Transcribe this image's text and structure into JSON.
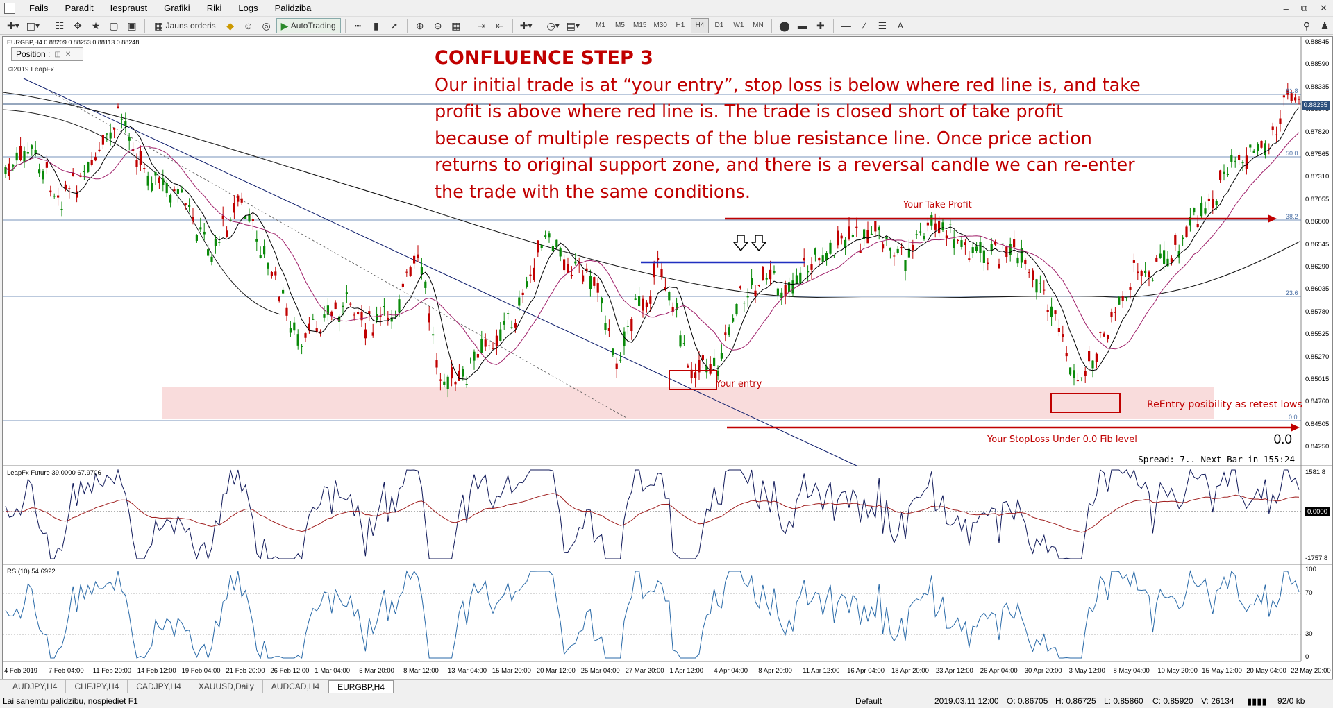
{
  "menu": {
    "items": [
      "Fails",
      "Paradit",
      "Iespraust",
      "Grafiki",
      "Riki",
      "Logs",
      "Palidziba"
    ]
  },
  "toolbar": {
    "new_order": "Jauns orderis",
    "autotrading": "AutoTrading",
    "timeframes": [
      "M1",
      "M5",
      "M15",
      "M30",
      "H1",
      "H4",
      "D1",
      "W1",
      "MN"
    ],
    "active_timeframe": "H4",
    "text_tool": "A"
  },
  "chart": {
    "symbol_line": "EURGBP,H4  0.88209 0.88253 0.88113 0.88248",
    "position_window": "Position :",
    "copyright": "©2019 LeapFx",
    "annotation_title": "CONFLUENCE STEP 3",
    "annotation_lines": [
      "Our initial trade is at “your entry”, stop loss is below where red line is, and take",
      "profit is above where red line is.  The trade is closed short of take profit",
      "because of multiple respects of the blue resistance line.  Once price action",
      "returns to original support zone, and there is a reversal candle we can re-enter",
      "the trade with the same conditions."
    ],
    "take_profit_label": "Your Take Profit",
    "entry_label": "Your entry",
    "reentry_label": "ReEntry   posibility as retest lows",
    "stoploss_label": "Your StopLoss Under 0.0 Fib level",
    "zero_label": "0.0",
    "spread_text": "Spread: 7.. Next Bar in 155:24",
    "fib_labels": [
      "61.8",
      "50.0",
      "38.2",
      "23.6",
      "0.0"
    ],
    "price_axis": [
      "0.88845",
      "0.88590",
      "0.88335",
      "0.88075",
      "0.87820",
      "0.87565",
      "0.87310",
      "0.87055",
      "0.86800",
      "0.86545",
      "0.86290",
      "0.86035",
      "0.85780",
      "0.85525",
      "0.85270",
      "0.85015",
      "0.84760",
      "0.84505",
      "0.84250"
    ],
    "current_price": "0.88255",
    "colors": {
      "annotation": "#c00000",
      "fib": "#4a6fa5",
      "resistance": "#2030c0",
      "support_zone": "#f9dcdc",
      "candle": "#0a8a0a",
      "candle_down": "#c00000"
    }
  },
  "indicator1": {
    "title": "LeapFx Future 39.0000 67.9706",
    "axis": [
      "1581.8",
      "0.0000",
      "-1757.8"
    ]
  },
  "indicator2": {
    "title": "RSI(10) 54.6922",
    "axis": [
      "100",
      "70",
      "30",
      "0"
    ]
  },
  "time_axis": [
    "4 Feb 2019",
    "7 Feb 04:00",
    "11 Feb 20:00",
    "14 Feb 12:00",
    "19 Feb 04:00",
    "21 Feb 20:00",
    "26 Feb 12:00",
    "1 Mar 04:00",
    "5 Mar 20:00",
    "8 Mar 12:00",
    "13 Mar 04:00",
    "15 Mar 20:00",
    "20 Mar 12:00",
    "25 Mar 04:00",
    "27 Mar 20:00",
    "1 Apr 12:00",
    "4 Apr 04:00",
    "8 Apr 20:00",
    "11 Apr 12:00",
    "16 Apr 04:00",
    "18 Apr 20:00",
    "23 Apr 12:00",
    "26 Apr 04:00",
    "30 Apr 20:00",
    "3 May 12:00",
    "8 May 04:00",
    "10 May 20:00",
    "15 May 12:00",
    "20 May 04:00",
    "22 May 20:00"
  ],
  "tabs": [
    "AUDJPY,H4",
    "CHFJPY,H4",
    "CADJPY,H4",
    "XAUUSD,Daily",
    "AUDCAD,H4",
    "EURGBP,H4"
  ],
  "active_tab": "EURGBP,H4",
  "status": {
    "help": "Lai sanemtu palidzibu, nospiediet F1",
    "profile": "Default",
    "datetime": "2019.03.11 12:00",
    "open": "O: 0.86705",
    "high": "H: 0.86725",
    "low": "L: 0.85860",
    "close": "C: 0.85920",
    "volume": "V: 26134",
    "traffic": "92/0 kb"
  }
}
